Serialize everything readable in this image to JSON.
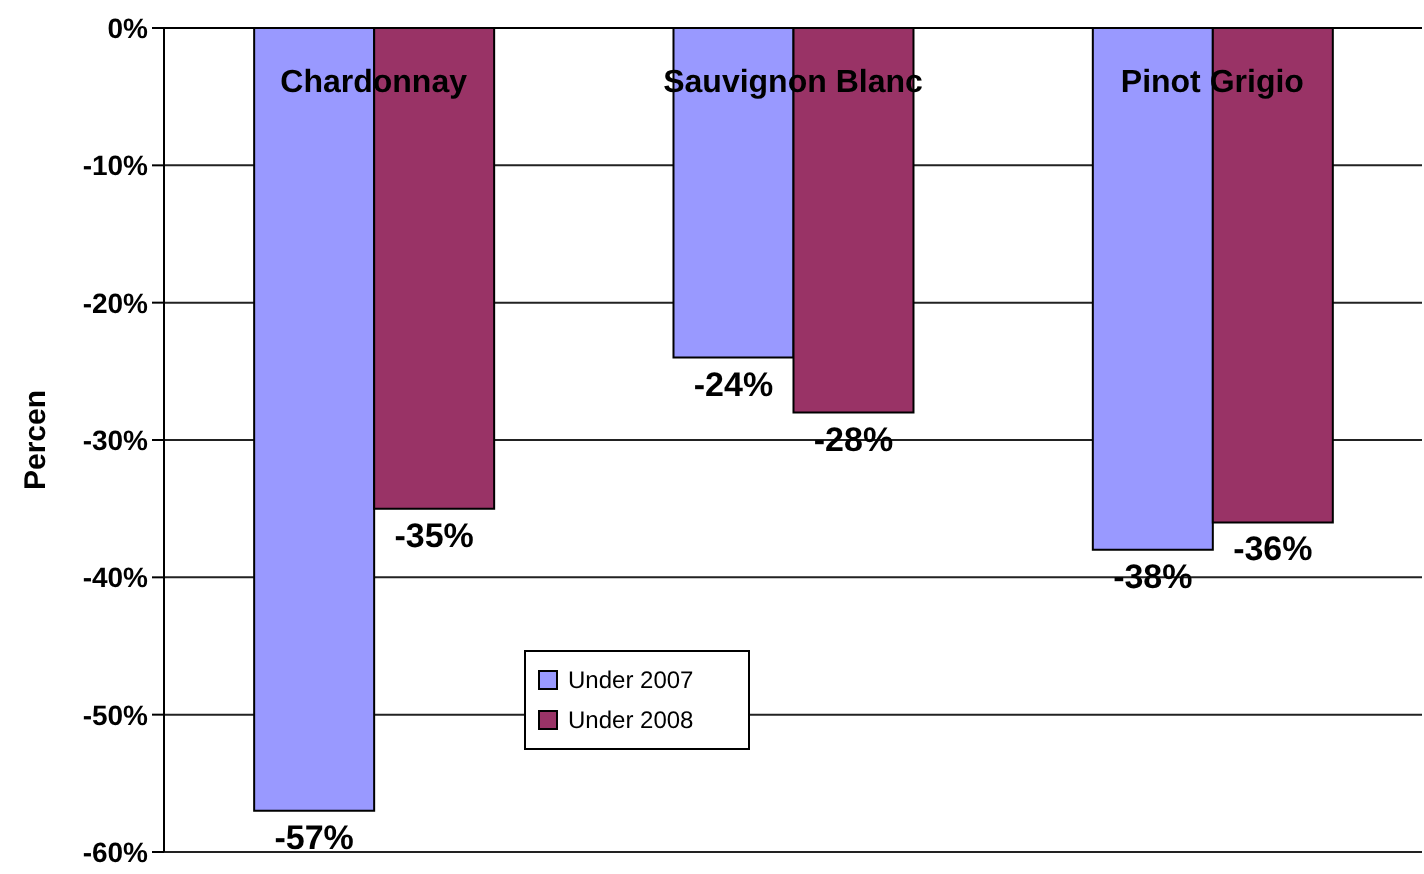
{
  "chart_data": {
    "type": "bar",
    "ylabel": "Percen",
    "categories": [
      "Chardonnay",
      "Sauvignon Blanc",
      "Pinot Grigio"
    ],
    "series": [
      {
        "name": "Under 2007",
        "color": "#9999ff",
        "values": [
          -57,
          -24,
          -38
        ],
        "value_labels": [
          "-57%",
          "-24%",
          "-38%"
        ]
      },
      {
        "name": "Under 2008",
        "color": "#993366",
        "values": [
          -35,
          -28,
          -36
        ],
        "value_labels": [
          "-35%",
          "-28%",
          "-36%"
        ]
      }
    ],
    "ylim": [
      -60,
      0
    ],
    "yticks": [
      {
        "value": 0,
        "label": "0%"
      },
      {
        "value": -10,
        "label": "-10%"
      },
      {
        "value": -20,
        "label": "-20%"
      },
      {
        "value": -30,
        "label": "-30%"
      },
      {
        "value": -40,
        "label": "-40%"
      },
      {
        "value": -50,
        "label": "-50%"
      },
      {
        "value": -60,
        "label": "-60%"
      }
    ],
    "grid": "y",
    "legend": "bottom left"
  }
}
